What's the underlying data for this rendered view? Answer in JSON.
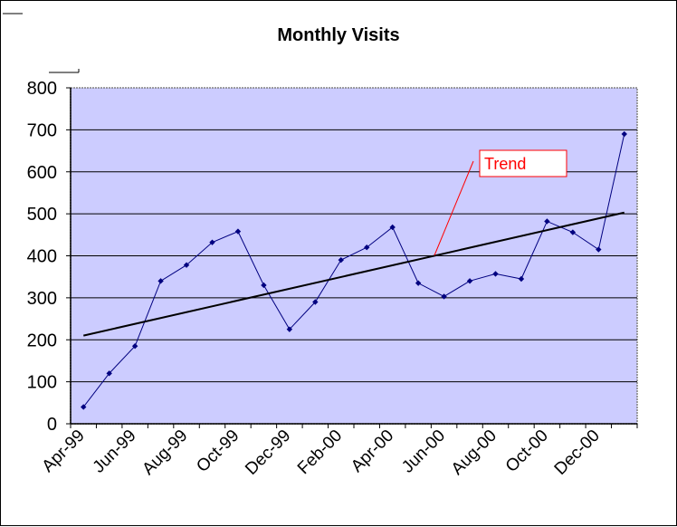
{
  "chart_data": {
    "type": "line",
    "title": "Monthly Visits",
    "xlabel": "",
    "ylabel": "",
    "ylim": [
      0,
      800
    ],
    "yticks": [
      0,
      100,
      200,
      300,
      400,
      500,
      600,
      700,
      800
    ],
    "x": [
      "Apr-99",
      "May-99",
      "Jun-99",
      "Jul-99",
      "Aug-99",
      "Sep-99",
      "Oct-99",
      "Nov-99",
      "Dec-99",
      "Jan-00",
      "Feb-00",
      "Mar-00",
      "Apr-00",
      "May-00",
      "Jun-00",
      "Jul-00",
      "Aug-00",
      "Sep-00",
      "Oct-00",
      "Nov-00",
      "Dec-00",
      "Jan-01"
    ],
    "x_tick_labels": [
      "Apr-99",
      "Jun-99",
      "Aug-99",
      "Oct-99",
      "Dec-99",
      "Feb-00",
      "Apr-00",
      "Jun-00",
      "Aug-00",
      "Oct-00",
      "Dec-00"
    ],
    "series": [
      {
        "values": [
          40,
          120,
          185,
          340,
          378,
          432,
          458,
          330,
          225,
          290,
          390,
          420,
          468,
          335,
          303,
          340,
          357,
          345,
          482,
          456,
          415,
          690
        ],
        "color": "#000080",
        "marker": "diamond"
      }
    ],
    "trendline": {
      "start": 210,
      "end": 503,
      "color": "#000000"
    },
    "annotation": {
      "text": "Trend",
      "color": "#ff0000"
    },
    "plot_background": "#ccccff",
    "gridlines": "horizontal",
    "legend": "none"
  }
}
